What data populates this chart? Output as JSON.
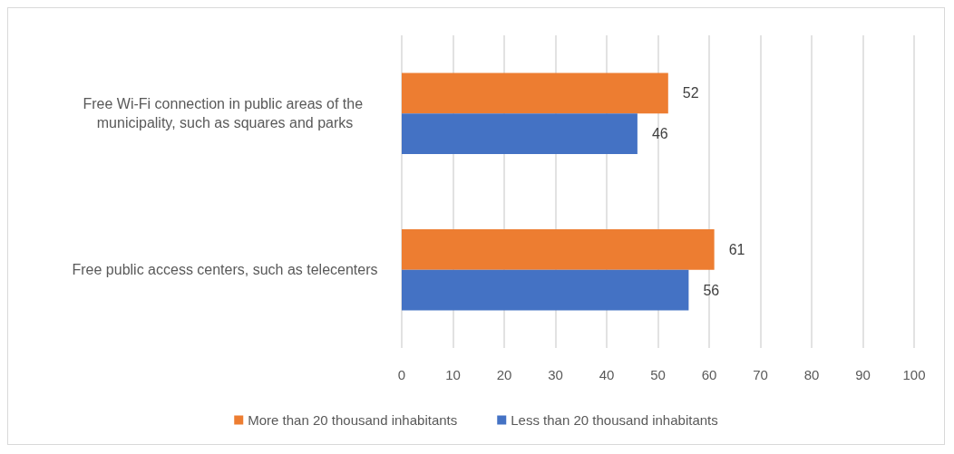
{
  "chart_data": {
    "type": "bar",
    "orientation": "horizontal",
    "categories": [
      "Free Wi-Fi connection in public areas of the municipality, such as squares and parks",
      "Free public access centers, such as telecenters"
    ],
    "series": [
      {
        "name": "More than 20 thousand inhabitants",
        "color": "#ed7d31",
        "values": [
          52,
          61
        ]
      },
      {
        "name": "Less than 20 thousand inhabitants",
        "color": "#4472c4",
        "values": [
          46,
          56
        ]
      }
    ],
    "xlim": [
      0,
      100
    ],
    "xticks": [
      0,
      10,
      20,
      30,
      40,
      50,
      60,
      70,
      80,
      90,
      100
    ],
    "grid": "x",
    "legend": "bottom",
    "data_labels": true
  }
}
